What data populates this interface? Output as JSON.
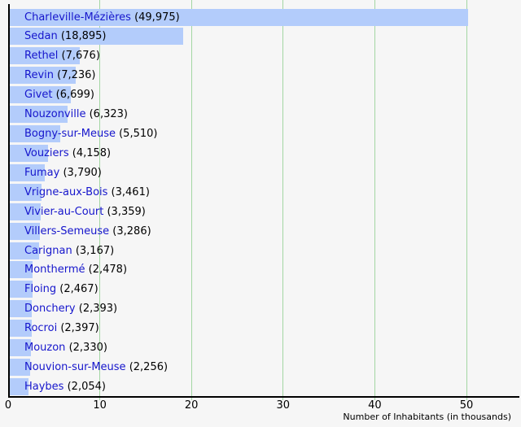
{
  "chart_data": {
    "type": "bar",
    "orientation": "horizontal",
    "title": "",
    "xlabel": "Number of Inhabitants (in thousands)",
    "ylabel": "",
    "x_ticks": [
      0,
      10,
      20,
      30,
      40,
      50
    ],
    "xlim": [
      0,
      55.7
    ],
    "grid": "vertical",
    "legend": "none",
    "bar_label_format": "{name} ({population})",
    "items": [
      {
        "name": "Charleville-Mézières",
        "value": 49975,
        "display": "49,975"
      },
      {
        "name": "Sedan",
        "value": 18895,
        "display": "18,895"
      },
      {
        "name": "Rethel",
        "value": 7676,
        "display": "7,676"
      },
      {
        "name": "Revin",
        "value": 7236,
        "display": "7,236"
      },
      {
        "name": "Givet",
        "value": 6699,
        "display": "6,699"
      },
      {
        "name": "Nouzonville",
        "value": 6323,
        "display": "6,323"
      },
      {
        "name": "Bogny-sur-Meuse",
        "value": 5510,
        "display": "5,510"
      },
      {
        "name": "Vouziers",
        "value": 4158,
        "display": "4,158"
      },
      {
        "name": "Fumay",
        "value": 3790,
        "display": "3,790"
      },
      {
        "name": "Vrigne-aux-Bois",
        "value": 3461,
        "display": "3,461"
      },
      {
        "name": "Vivier-au-Court",
        "value": 3359,
        "display": "3,359"
      },
      {
        "name": "Villers-Semeuse",
        "value": 3286,
        "display": "3,286"
      },
      {
        "name": "Carignan",
        "value": 3167,
        "display": "3,167"
      },
      {
        "name": "Monthermé",
        "value": 2478,
        "display": "2,478"
      },
      {
        "name": "Floing",
        "value": 2467,
        "display": "2,467"
      },
      {
        "name": "Donchery",
        "value": 2393,
        "display": "2,393"
      },
      {
        "name": "Rocroi",
        "value": 2397,
        "display": "2,397"
      },
      {
        "name": "Mouzon",
        "value": 2330,
        "display": "2,330"
      },
      {
        "name": "Nouvion-sur-Meuse",
        "value": 2256,
        "display": "2,256"
      },
      {
        "name": "Haybes",
        "value": 2054,
        "display": "2,054"
      }
    ]
  },
  "colors": {
    "background": "#f6f6f6",
    "bar_fill": "#b3ccfb",
    "gridline": "#a3d6a3",
    "axis": "#000000",
    "town_link": "#1616cc",
    "value_text": "#000000",
    "tick_text": "#000000"
  }
}
